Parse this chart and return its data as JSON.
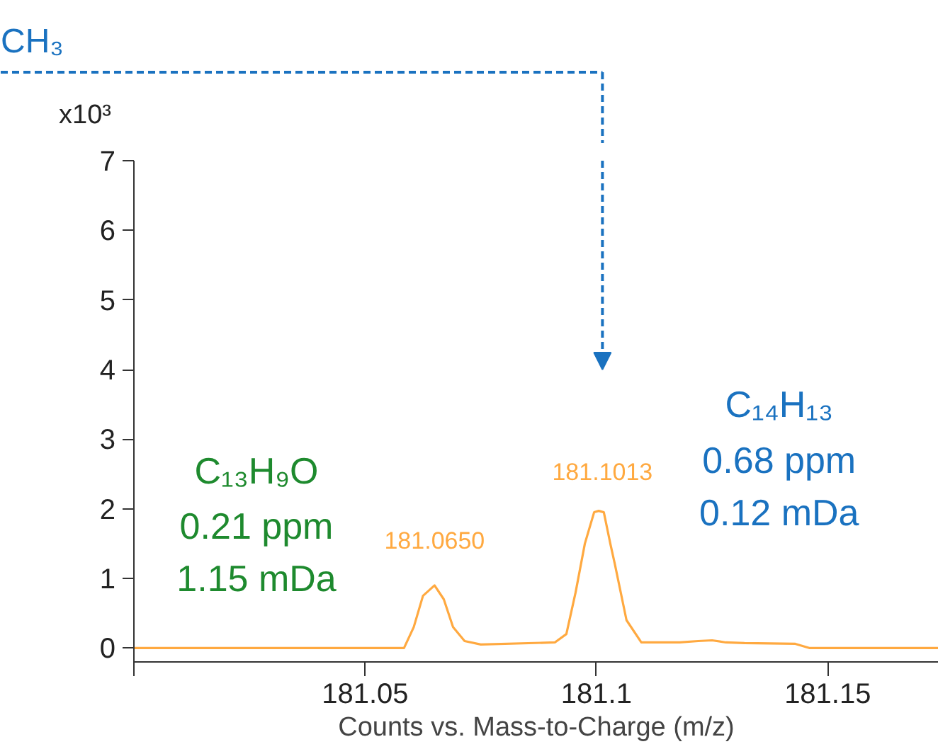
{
  "chart_data": {
    "type": "line",
    "xlabel": "Counts vs. Mass-to-Charge (m/z)",
    "xlim": [
      181.0,
      181.174
    ],
    "ylim": [
      -0.2,
      7
    ],
    "xticks": [
      {
        "value": 181.0,
        "label": null
      },
      181.05,
      181.1,
      181.15
    ],
    "yticks": [
      0,
      1,
      2,
      3,
      4,
      5,
      6,
      7
    ],
    "grid": false,
    "marker": "none",
    "line_style": "solid",
    "series": [
      {
        "color": "#ffa940",
        "x": [
          181.0,
          181.0584,
          181.0605,
          181.0625,
          181.065,
          181.067,
          181.069,
          181.0715,
          181.075,
          181.091,
          181.0935,
          181.0955,
          181.0975,
          181.0995,
          181.1005,
          181.1016,
          181.103,
          181.104,
          181.1065,
          181.1097,
          181.118,
          181.122,
          181.125,
          181.128,
          181.132,
          181.143,
          181.146,
          181.174
        ],
        "values": [
          0,
          0,
          0.3,
          0.75,
          0.9,
          0.7,
          0.3,
          0.1,
          0.05,
          0.08,
          0.2,
          0.8,
          1.5,
          1.95,
          1.97,
          1.95,
          1.5,
          1.2,
          0.4,
          0.08,
          0.08,
          0.1,
          0.11,
          0.08,
          0.07,
          0.06,
          0.0,
          0.0
        ]
      }
    ],
    "annotations": [
      "x10³",
      "CH₃",
      {
        "text": "181.0650",
        "x": 181.065,
        "y": 0.9
      },
      {
        "text": "181.1013",
        "x": 181.1013,
        "y": 1.97
      },
      "C₁₃H₉O",
      "0.21 ppm",
      "1.15 mDa",
      "C₁₄H₁₃",
      "0.68 ppm",
      "0.12 mDa"
    ]
  }
}
